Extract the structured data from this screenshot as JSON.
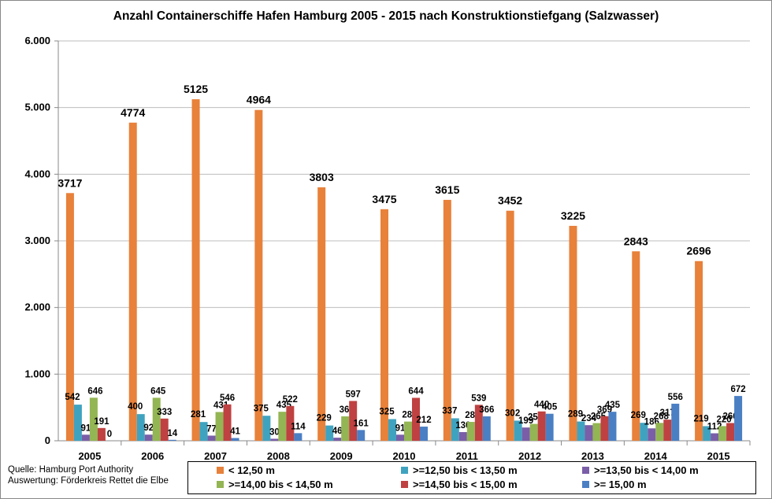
{
  "chart_data": {
    "type": "bar",
    "title": "Anzahl Containerschiffe Hafen Hamburg 2005 - 2015 nach Konstruktionstiefgang (Salzwasser)",
    "categories": [
      "2005",
      "2006",
      "2007",
      "2008",
      "2009",
      "2010",
      "2011",
      "2012",
      "2013",
      "2014",
      "2015"
    ],
    "ylim": [
      0,
      6000
    ],
    "yticks": [
      0,
      1000,
      2000,
      3000,
      4000,
      5000,
      6000
    ],
    "ytick_labels": [
      "0",
      "1.000",
      "2.000",
      "3.000",
      "4.000",
      "5.000",
      "6.000"
    ],
    "grid": true,
    "legend_position": "bottom",
    "series": [
      {
        "name": "< 12,50 m",
        "color": "#e8813a",
        "values": [
          3717,
          4774,
          5125,
          4964,
          3803,
          3475,
          3615,
          3452,
          3225,
          2843,
          2696
        ]
      },
      {
        "name": ">=12,50 bis  < 13,50 m",
        "color": "#3fa3c0",
        "values": [
          542,
          400,
          281,
          375,
          229,
          325,
          337,
          302,
          289,
          269,
          219
        ]
      },
      {
        "name": ">=13,50 bis < 14,00 m",
        "color": "#7a5ea8",
        "values": [
          91,
          92,
          77,
          30,
          46,
          91,
          130,
          199,
          234,
          186,
          112
        ]
      },
      {
        "name": ">=14,00 bis < 14,50 m",
        "color": "#93b553",
        "values": [
          646,
          645,
          431,
          435,
          366,
          288,
          283,
          253,
          265,
          268,
          220
        ]
      },
      {
        "name": ">=14,50 bis < 15,00 m",
        "color": "#bf4141",
        "values": [
          191,
          333,
          546,
          522,
          597,
          644,
          539,
          440,
          369,
          317,
          266
        ]
      },
      {
        "name": ">= 15,00 m",
        "color": "#4a7fc4",
        "values": [
          0,
          14,
          41,
          114,
          161,
          212,
          366,
          405,
          435,
          556,
          672
        ]
      }
    ]
  },
  "source": {
    "line1": "Quelle: Hamburg Port Authority",
    "line2": "Auswertung: Förderkreis Rettet die Elbe"
  }
}
